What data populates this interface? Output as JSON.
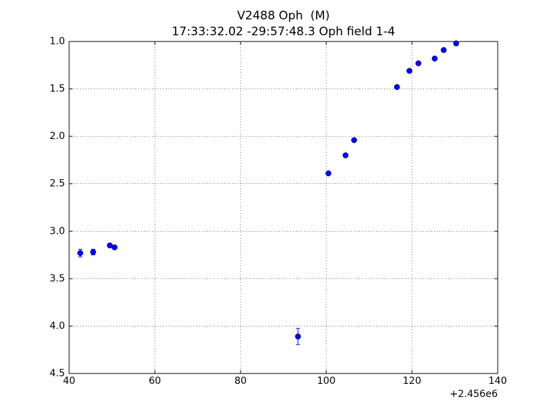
{
  "chart_data": {
    "type": "scatter",
    "title": "V2488 Oph  (M)",
    "subtitle": "17:33:32.02 -29:57:48.3 Oph field 1-4",
    "x_offset_label": "+2.456e6",
    "x": [
      42.6,
      45.6,
      49.5,
      50.6,
      93.4,
      100.5,
      104.5,
      106.5,
      116.5,
      119.4,
      121.5,
      125.3,
      127.4,
      130.3
    ],
    "values": [
      3.23,
      3.22,
      3.15,
      3.17,
      4.11,
      2.39,
      2.2,
      2.04,
      1.48,
      1.31,
      1.23,
      1.18,
      1.09,
      1.02
    ],
    "errors": [
      0.04,
      0.03,
      0.02,
      0.02,
      0.085,
      0.01,
      0.01,
      0.01,
      0.01,
      0.01,
      0.01,
      0.01,
      0.01,
      0.01
    ],
    "color": "#0000ff",
    "xlim": [
      40,
      140
    ],
    "xticks": [
      40,
      60,
      80,
      100,
      120,
      140
    ],
    "ylim": [
      4.5,
      1.0
    ],
    "y_inverted": true,
    "yticks": [
      {
        "value": 1.0,
        "label": "1.0"
      },
      1.5,
      {
        "value": 2.0,
        "label": "2.0"
      },
      2.5,
      {
        "value": 3.0,
        "label": "3.0"
      },
      3.5,
      {
        "value": 4.0,
        "label": "4.0"
      },
      4.5
    ],
    "grid": true
  }
}
